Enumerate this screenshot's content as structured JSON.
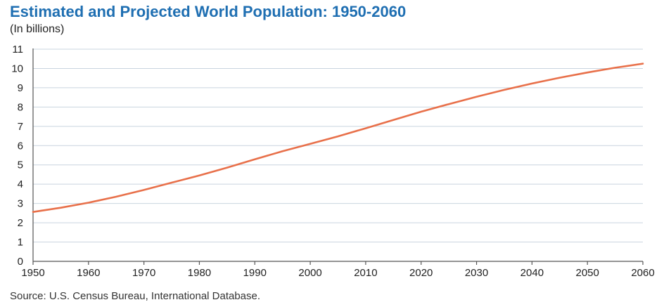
{
  "chart_data": {
    "type": "line",
    "title": "Estimated and Projected World Population: 1950-2060",
    "subtitle": "(In billions)",
    "xlabel": "",
    "ylabel": "",
    "xlim": [
      1950,
      2060
    ],
    "ylim": [
      0,
      11
    ],
    "xticks": [
      "1950",
      "1960",
      "1970",
      "1980",
      "1990",
      "2000",
      "2010",
      "2020",
      "2030",
      "2040",
      "2050",
      "2060"
    ],
    "yticks": [
      "0",
      "1",
      "2",
      "3",
      "4",
      "5",
      "6",
      "7",
      "8",
      "9",
      "10",
      "11"
    ],
    "grid": true,
    "line_color": "#e8704a",
    "series": [
      {
        "x": [
          1950,
          1955,
          1960,
          1965,
          1970,
          1975,
          1980,
          1985,
          1990,
          1995,
          2000,
          2005,
          2010,
          2015,
          2020,
          2025,
          2030,
          2035,
          2040,
          2045,
          2050,
          2055,
          2060
        ],
        "values": [
          2.56,
          2.78,
          3.04,
          3.35,
          3.7,
          4.08,
          4.45,
          4.86,
          5.29,
          5.71,
          6.09,
          6.48,
          6.9,
          7.33,
          7.76,
          8.15,
          8.53,
          8.89,
          9.22,
          9.52,
          9.79,
          10.04,
          10.25
        ]
      }
    ],
    "source": "Source: U.S. Census Bureau, International Database."
  }
}
